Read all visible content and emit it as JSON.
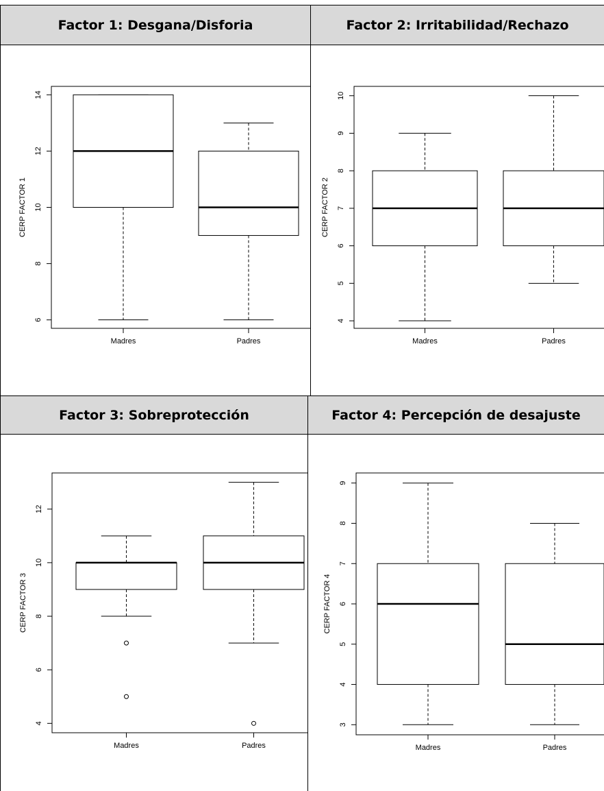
{
  "chart_data": [
    {
      "type": "boxplot",
      "title": "Factor 1: Desgana/Disforia",
      "ylabel": "CERP FACTOR 1",
      "categories": [
        "Madres",
        "Padres"
      ],
      "yticks": [
        6,
        8,
        10,
        12,
        14
      ],
      "ylim": [
        5.7,
        14.3
      ],
      "boxes": [
        {
          "name": "Madres",
          "min": 6,
          "q1": 10,
          "median": 12,
          "q3": 14,
          "max": 14,
          "outliers": []
        },
        {
          "name": "Padres",
          "min": 6,
          "q1": 9,
          "median": 10,
          "q3": 12,
          "max": 13,
          "outliers": []
        }
      ]
    },
    {
      "type": "boxplot",
      "title": "Factor 2: Irritabilidad/Rechazo",
      "ylabel": "CERP FACTOR 2",
      "categories": [
        "Madres",
        "Padres"
      ],
      "yticks": [
        4,
        5,
        6,
        7,
        8,
        9,
        10
      ],
      "ylim": [
        3.8,
        10.25
      ],
      "boxes": [
        {
          "name": "Madres",
          "min": 4,
          "q1": 6,
          "median": 7,
          "q3": 8,
          "max": 9,
          "outliers": []
        },
        {
          "name": "Padres",
          "min": 5,
          "q1": 6,
          "median": 7,
          "q3": 8,
          "max": 10,
          "outliers": []
        }
      ]
    },
    {
      "type": "boxplot",
      "title": "Factor 3: Sobreprotección",
      "ylabel": "CERP FACTOR 3",
      "categories": [
        "Madres",
        "Padres"
      ],
      "yticks": [
        4,
        6,
        8,
        10,
        12
      ],
      "ylim": [
        3.65,
        13.35
      ],
      "boxes": [
        {
          "name": "Madres",
          "min": 8,
          "q1": 9,
          "median": 10,
          "q3": 10,
          "max": 11,
          "outliers": [
            7,
            5
          ]
        },
        {
          "name": "Padres",
          "min": 7,
          "q1": 9,
          "median": 10,
          "q3": 11,
          "max": 13,
          "outliers": [
            4
          ]
        }
      ]
    },
    {
      "type": "boxplot",
      "title": "Factor 4: Percepción de desajuste",
      "ylabel": "CERP FACTOR 4",
      "categories": [
        "Madres",
        "Padres"
      ],
      "yticks": [
        3,
        4,
        5,
        6,
        7,
        8,
        9
      ],
      "ylim": [
        2.75,
        9.25
      ],
      "boxes": [
        {
          "name": "Madres",
          "min": 3,
          "q1": 4,
          "median": 6,
          "q3": 7,
          "max": 9,
          "outliers": []
        },
        {
          "name": "Padres",
          "min": 3,
          "q1": 4,
          "median": 5,
          "q3": 7,
          "max": 8,
          "outliers": []
        }
      ]
    }
  ]
}
